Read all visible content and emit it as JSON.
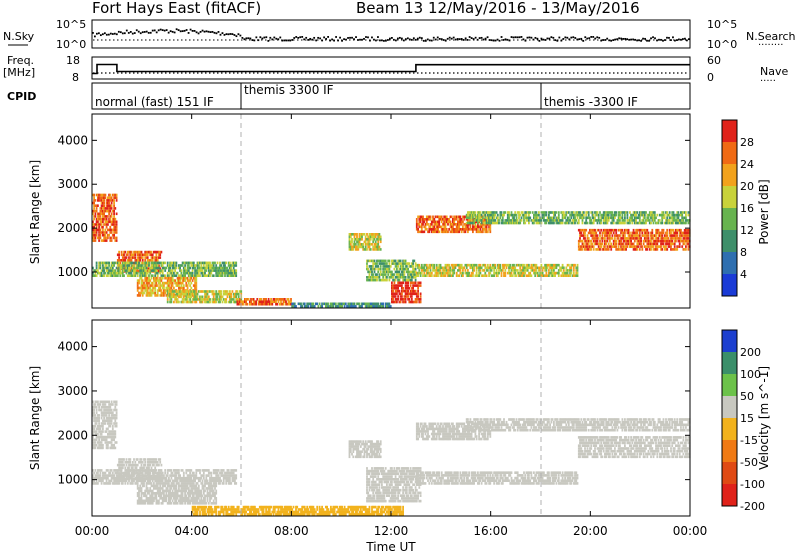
{
  "header": {
    "station": "Fort Hays East (fitACF)",
    "beam_date": "Beam 13 12/May/2016 - 13/May/2016"
  },
  "noise_panel": {
    "left_label": "N.Sky",
    "right_label": "N.Search",
    "left_ticks": [
      "10^5",
      "10^0"
    ],
    "right_ticks": [
      "10^5",
      "10^0"
    ]
  },
  "freq_panel": {
    "left_label": "Freq.",
    "left_unit": "[MHz]",
    "right_label": "Nave",
    "left_ticks": [
      "18",
      "8"
    ],
    "right_ticks": [
      "60",
      "0"
    ],
    "freq_steps": [
      {
        "from_h": 0.0,
        "to_h": 0.2,
        "mhz": 10.5
      },
      {
        "from_h": 0.2,
        "to_h": 1.0,
        "mhz": 14.6
      },
      {
        "from_h": 1.0,
        "to_h": 13.0,
        "mhz": 11.4
      },
      {
        "from_h": 13.0,
        "to_h": 24.0,
        "mhz": 14.5
      }
    ]
  },
  "cpid_panel": {
    "label": "CPID",
    "segments": [
      {
        "start_h": 0,
        "text": "normal (fast) 151 IF"
      },
      {
        "start_h": 6,
        "text": "themis 3300 IF"
      },
      {
        "start_h": 18,
        "text": "themis -3300 IF"
      }
    ]
  },
  "x_axis": {
    "label": "Time UT",
    "ticks": [
      "00:00",
      "04:00",
      "08:00",
      "12:00",
      "16:00",
      "20:00",
      "00:00"
    ]
  },
  "power_panel": {
    "ylabel": "Slant Range [km]",
    "yticks": [
      "1000",
      "2000",
      "3000",
      "4000"
    ],
    "colorbar_label": "Power [dB]",
    "colorbar_ticks": [
      "4",
      "8",
      "12",
      "16",
      "20",
      "24",
      "28"
    ],
    "colors": [
      "#1a3bd6",
      "#2e6fb0",
      "#3e8f6a",
      "#67b34f",
      "#c8d23a",
      "#f2a21c",
      "#f06a14",
      "#e0221a"
    ]
  },
  "velocity_panel": {
    "ylabel": "Slant Range [km]",
    "yticks": [
      "1000",
      "2000",
      "3000",
      "4000"
    ],
    "colorbar_label": "Velocity [m s^-1]",
    "colorbar_ticks": [
      "200",
      "100",
      "50",
      "15",
      "-15",
      "-50",
      "-100",
      "-200"
    ],
    "colors": [
      "#1c3fcf",
      "#3b8f6a",
      "#6cc24a",
      "#c8c8c0",
      "#f2b21c",
      "#f07a14",
      "#e04a14",
      "#e0221a"
    ]
  },
  "chart_data": {
    "type": "heatmap",
    "x_range_hours": [
      0,
      24
    ],
    "y_range_km": [
      180,
      4600
    ],
    "power_regions": [
      {
        "t0": 0.0,
        "t1": 1.0,
        "r0": 1700,
        "r1": 2800,
        "level": 6
      },
      {
        "t0": 1.0,
        "t1": 2.8,
        "r0": 1000,
        "r1": 1500,
        "level": 6
      },
      {
        "t0": 0.0,
        "t1": 5.8,
        "r0": 900,
        "r1": 1250,
        "level": 3
      },
      {
        "t0": 1.8,
        "t1": 4.2,
        "r0": 450,
        "r1": 900,
        "level": 5
      },
      {
        "t0": 3.0,
        "t1": 6.0,
        "r0": 300,
        "r1": 600,
        "level": 4
      },
      {
        "t0": 5.8,
        "t1": 8.0,
        "r0": 250,
        "r1": 420,
        "level": 6
      },
      {
        "t0": 8.0,
        "t1": 12.0,
        "r0": 200,
        "r1": 320,
        "level": 2
      },
      {
        "t0": 10.3,
        "t1": 11.6,
        "r0": 1500,
        "r1": 1900,
        "level": 4
      },
      {
        "t0": 11.0,
        "t1": 13.0,
        "r0": 800,
        "r1": 1300,
        "level": 3
      },
      {
        "t0": 12.0,
        "t1": 13.2,
        "r0": 300,
        "r1": 800,
        "level": 7
      },
      {
        "t0": 13.0,
        "t1": 16.0,
        "r0": 1900,
        "r1": 2300,
        "level": 6
      },
      {
        "t0": 13.0,
        "t1": 19.5,
        "r0": 900,
        "r1": 1200,
        "level": 4
      },
      {
        "t0": 15.0,
        "t1": 24.0,
        "r0": 2100,
        "r1": 2400,
        "level": 3
      },
      {
        "t0": 19.5,
        "t1": 24.0,
        "r0": 1500,
        "r1": 2000,
        "level": 6
      }
    ],
    "velocity_regions": [
      {
        "t0": 0.0,
        "t1": 1.0,
        "r0": 1700,
        "r1": 2800,
        "level": 3
      },
      {
        "t0": 1.0,
        "t1": 2.8,
        "r0": 1000,
        "r1": 1500,
        "level": 3
      },
      {
        "t0": 0.0,
        "t1": 5.8,
        "r0": 900,
        "r1": 1250,
        "level": 3
      },
      {
        "t0": 1.8,
        "t1": 5.0,
        "r0": 450,
        "r1": 900,
        "level": 3
      },
      {
        "t0": 4.0,
        "t1": 12.5,
        "r0": 200,
        "r1": 420,
        "level": 4
      },
      {
        "t0": 10.3,
        "t1": 11.6,
        "r0": 1500,
        "r1": 1900,
        "level": 3
      },
      {
        "t0": 11.0,
        "t1": 13.2,
        "r0": 500,
        "r1": 1300,
        "level": 3
      },
      {
        "t0": 13.0,
        "t1": 16.0,
        "r0": 1900,
        "r1": 2300,
        "level": 3
      },
      {
        "t0": 13.0,
        "t1": 19.5,
        "r0": 900,
        "r1": 1200,
        "level": 3
      },
      {
        "t0": 15.0,
        "t1": 24.0,
        "r0": 2100,
        "r1": 2400,
        "level": 3
      },
      {
        "t0": 19.5,
        "t1": 24.0,
        "r0": 1500,
        "r1": 2000,
        "level": 3
      }
    ]
  }
}
